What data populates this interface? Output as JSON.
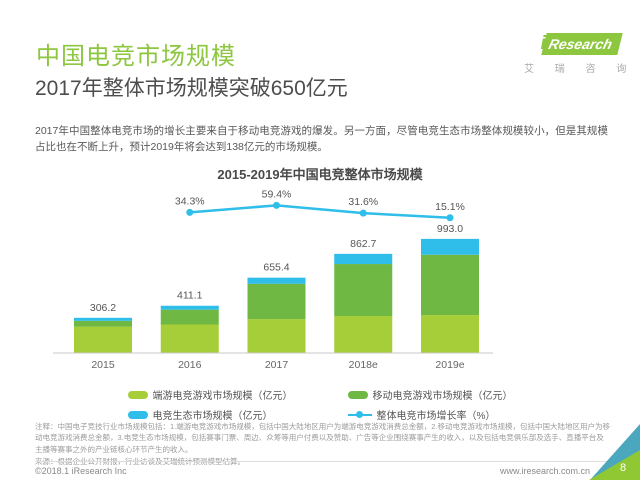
{
  "page": {
    "title": "中国电竞市场规模",
    "subtitle": "2017年整体市场规模突破650亿元",
    "body": "2017年中国整体电竞市场的增长主要来自于移动电竞游戏的爆发。另一方面，尽管电竞生态市场整体规模较小，但是其规模占比也在不断上升，预计2019年将会达到138亿元的市场规模。"
  },
  "logo": {
    "brand_i": "i",
    "brand_rest": "Research",
    "chinese": "艾 瑞 咨 询"
  },
  "chart_data": {
    "type": "bar",
    "stacked": true,
    "title": "2015-2019年中国电竞整体市场规模",
    "unit": "亿元",
    "categories": [
      "2015",
      "2016",
      "2017",
      "2018e",
      "2019e"
    ],
    "series": [
      {
        "name": "端游电竞游戏市场规模（亿元）",
        "color": "#a6ce39",
        "values": [
          230.0,
          248.0,
          295.0,
          322.0,
          330.0
        ]
      },
      {
        "name": "移动电竞游戏市场规模（亿元）",
        "color": "#6eb843",
        "values": [
          50.0,
          129.0,
          307.0,
          452.0,
          525.0
        ]
      },
      {
        "name": "电竞生态市场规模（亿元）",
        "color": "#2fbde9",
        "values": [
          26.2,
          34.1,
          53.4,
          88.7,
          138.0
        ]
      }
    ],
    "totals": [
      306.2,
      411.1,
      655.4,
      862.7,
      993.0
    ],
    "total_labels": [
      "306.2",
      "411.1",
      "655.4",
      "862.7",
      "993.0"
    ],
    "line_series": {
      "name": "整体电竞市场增长率（%）",
      "color": "#2fbde9",
      "x_categories": [
        "2016",
        "2017",
        "2018e",
        "2019e"
      ],
      "values": [
        34.3,
        59.4,
        31.6,
        15.1
      ],
      "labels": [
        "34.3%",
        "59.4%",
        "31.6%",
        "15.1%"
      ]
    },
    "ylim": [
      0,
      1050
    ],
    "grid": false,
    "legend_position": "bottom"
  },
  "footer": {
    "note": "注释：中国电子竞技行业市场规模包括：1.端游电竞游戏市场规模，包括中国大陆地区用户为端游电竞游戏消费总金额，2.移动电竞游戏市场规模，包括中国大陆地区用户为移动电竞游戏消费总金额，3.电竞生态市场规模，包括赛事门票、周边、众筹等用户付费以及赞助、广告等企业围绕赛事产生的收入，以及包括电竞俱乐部及选手、直播平台及主播等赛事之外的产业链核心环节产生的收入。",
    "source": "来源：根据企业公开财报，行业访谈及艾瑞统计预测模型估算。",
    "copyright": "©2018.1 iResearch Inc",
    "website": "www.iresearch.com.cn",
    "page_number": "8"
  },
  "colors": {
    "brand_green": "#8dc63f",
    "bar_pc_green": "#a6ce39",
    "bar_mobile_green": "#6eb843",
    "bar_eco_blue": "#2fbde9",
    "corner_teal": "#4ba7bd",
    "corner_green": "#8fc833"
  }
}
